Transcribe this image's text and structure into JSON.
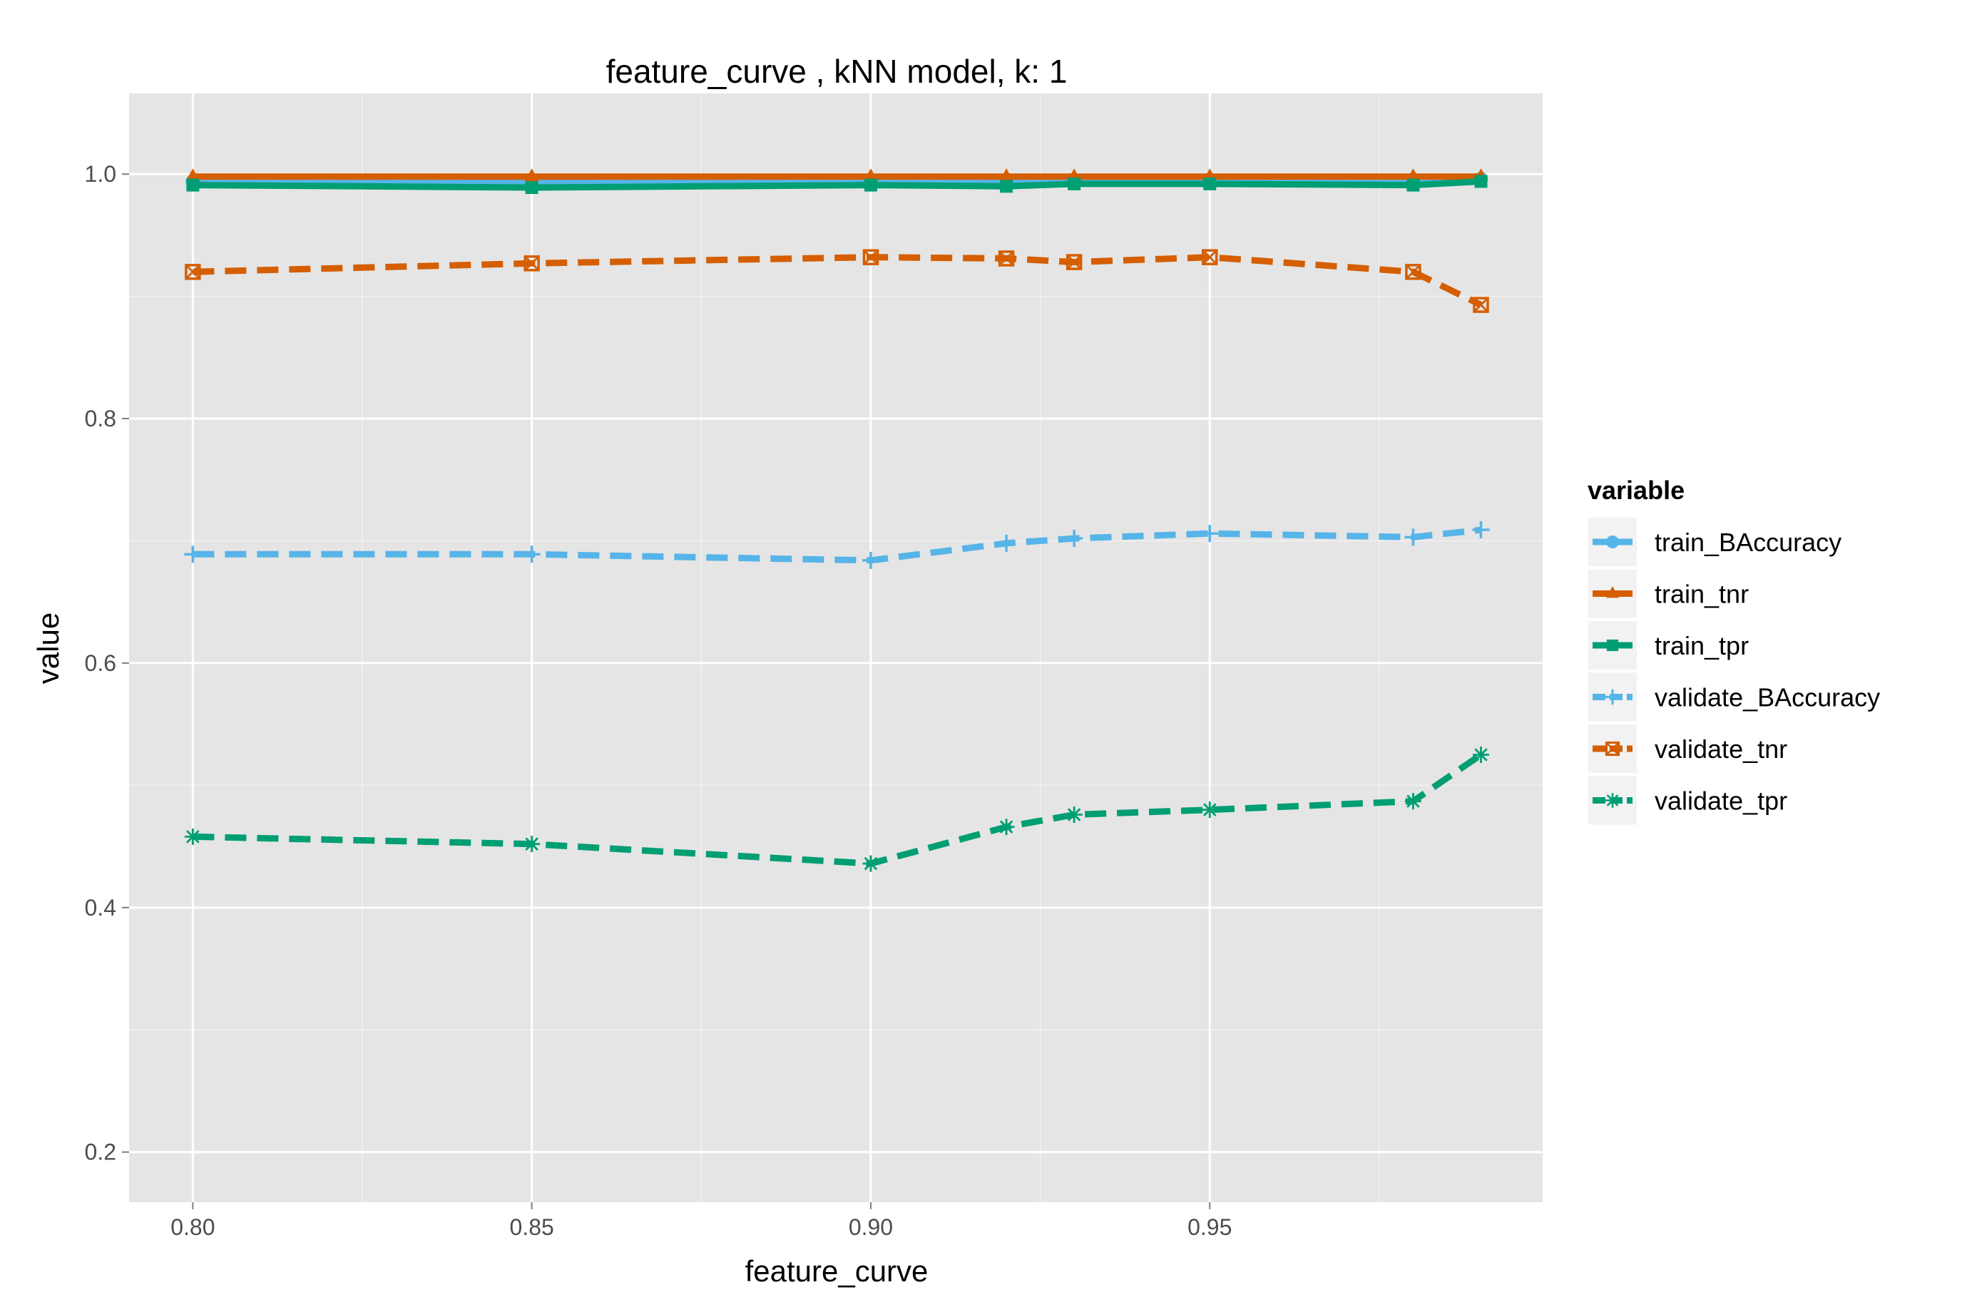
{
  "chart_data": {
    "type": "line",
    "title": "feature_curve ,  kNN model, k: 1",
    "xlabel": "feature_curve",
    "ylabel": "value",
    "x": [
      0.8,
      0.85,
      0.9,
      0.92,
      0.93,
      0.95,
      0.98,
      0.99
    ],
    "xlim": [
      0.7906,
      0.9991
    ],
    "ylim": [
      0.159,
      1.066
    ],
    "x_ticks": [
      {
        "value": 0.8,
        "label": "0.80"
      },
      {
        "value": 0.85,
        "label": "0.85"
      },
      {
        "value": 0.9,
        "label": "0.90"
      },
      {
        "value": 0.95,
        "label": "0.95"
      }
    ],
    "x_minor": [
      0.825,
      0.875,
      0.925,
      0.975
    ],
    "y_ticks": [
      {
        "value": 0.2,
        "label": "0.2"
      },
      {
        "value": 0.4,
        "label": "0.4"
      },
      {
        "value": 0.6,
        "label": "0.6"
      },
      {
        "value": 0.8,
        "label": "0.8"
      },
      {
        "value": 1.0,
        "label": "1.0"
      }
    ],
    "y_minor": [
      0.3,
      0.5,
      0.7,
      0.9
    ],
    "grid": true,
    "legend_title": "variable",
    "legend_position": "right",
    "series": [
      {
        "name": "train_BAccuracy",
        "color": "#56B4E9",
        "dashed": false,
        "marker": "circle",
        "values": [
          0.994,
          0.993,
          0.995,
          0.994,
          0.995,
          0.995,
          0.995,
          0.996
        ]
      },
      {
        "name": "train_tnr",
        "color": "#D55E00",
        "dashed": false,
        "marker": "triangle",
        "values": [
          0.998,
          0.998,
          0.998,
          0.998,
          0.998,
          0.998,
          0.998,
          0.998
        ]
      },
      {
        "name": "train_tpr",
        "color": "#009E73",
        "dashed": false,
        "marker": "square",
        "values": [
          0.991,
          0.989,
          0.991,
          0.99,
          0.992,
          0.992,
          0.991,
          0.994
        ]
      },
      {
        "name": "validate_BAccuracy",
        "color": "#56B4E9",
        "dashed": true,
        "marker": "plus",
        "values": [
          0.689,
          0.689,
          0.684,
          0.698,
          0.702,
          0.706,
          0.703,
          0.709
        ]
      },
      {
        "name": "validate_tnr",
        "color": "#D55E00",
        "dashed": true,
        "marker": "boxcross",
        "values": [
          0.92,
          0.927,
          0.932,
          0.931,
          0.928,
          0.932,
          0.92,
          0.893
        ]
      },
      {
        "name": "validate_tpr",
        "color": "#009E73",
        "dashed": true,
        "marker": "asterisk",
        "values": [
          0.458,
          0.452,
          0.436,
          0.466,
          0.476,
          0.48,
          0.487,
          0.525
        ]
      }
    ]
  }
}
